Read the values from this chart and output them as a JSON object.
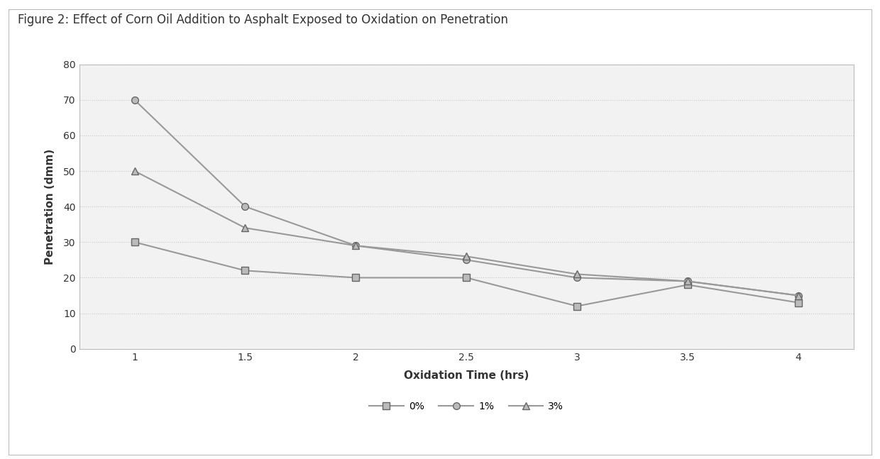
{
  "title": "Figure 2: Effect of Corn Oil Addition to Asphalt Exposed to Oxidation on Penetration",
  "xlabel": "Oxidation Time (hrs)",
  "ylabel": "Penetration (dmm)",
  "x": [
    1,
    1.5,
    2,
    2.5,
    3,
    3.5,
    4
  ],
  "series": [
    {
      "label": "0%",
      "y": [
        30,
        22,
        20,
        20,
        12,
        18,
        13
      ],
      "marker": "s",
      "linestyle": "-"
    },
    {
      "label": "1%",
      "y": [
        70,
        40,
        29,
        25,
        20,
        19,
        15
      ],
      "marker": "o",
      "linestyle": "-"
    },
    {
      "label": "3%",
      "y": [
        50,
        34,
        29,
        26,
        21,
        19,
        15
      ],
      "marker": "^",
      "linestyle": "-"
    }
  ],
  "ylim": [
    0,
    80
  ],
  "yticks": [
    0,
    10,
    20,
    30,
    40,
    50,
    60,
    70,
    80
  ],
  "xticks": [
    1,
    1.5,
    2,
    2.5,
    3,
    3.5,
    4
  ],
  "line_color": "#999999",
  "marker_edge_color": "#666666",
  "marker_face_color": "#bbbbbb",
  "background_color": "#ffffff",
  "plot_bg_color": "#f2f2f2",
  "grid_color": "#c8c8c8",
  "spine_color": "#bbbbbb",
  "text_color": "#333333",
  "title_fontsize": 12,
  "axis_label_fontsize": 11,
  "tick_fontsize": 10,
  "legend_fontsize": 10,
  "line_width": 1.5,
  "marker_size": 7,
  "marker_edge_width": 1.0
}
